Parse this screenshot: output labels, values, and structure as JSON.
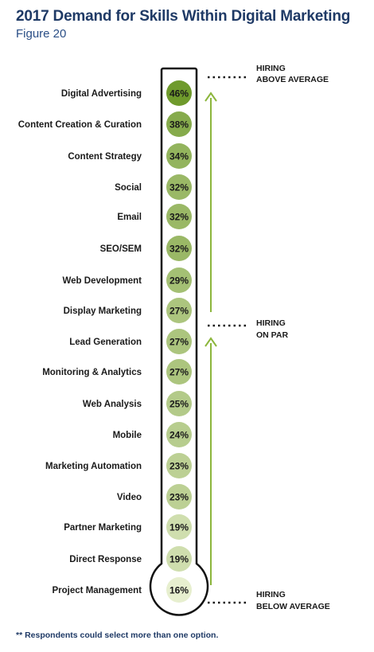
{
  "title": "2017 Demand for Skills Within Digital Marketing",
  "subtitle": "Figure 20",
  "footnote": "** Respondents could select more than one option.",
  "colors": {
    "title": "#1f3a66",
    "arrow": "#8cb63c",
    "outline": "#111111",
    "circle_dark": "#6f9a2c",
    "circle_light": "#e7efcf"
  },
  "annotations": {
    "above": {
      "line1": "HIRING",
      "line2": "ABOVE AVERAGE"
    },
    "par": {
      "line1": "HIRING",
      "line2": "ON PAR"
    },
    "below": {
      "line1": "HIRING",
      "line2": "BELOW AVERAGE"
    }
  },
  "chart_data": {
    "type": "bar",
    "categories": [
      "Digital Advertising",
      "Content Creation & Curation",
      "Content Strategy",
      "Social",
      "Email",
      "SEO/SEM",
      "Web Development",
      "Display Marketing",
      "Lead Generation",
      "Monitoring & Analytics",
      "Web Analysis",
      "Mobile",
      "Marketing Automation",
      "Video",
      "Partner Marketing",
      "Direct Response",
      "Project Management"
    ],
    "values": [
      46,
      38,
      34,
      32,
      32,
      32,
      29,
      27,
      27,
      27,
      25,
      24,
      23,
      23,
      19,
      19,
      16
    ],
    "labels": [
      "46%",
      "38%",
      "34%",
      "32%",
      "32%",
      "32%",
      "29%",
      "27%",
      "27%",
      "27%",
      "25%",
      "24%",
      "23%",
      "23%",
      "19%",
      "19%",
      "16%"
    ]
  }
}
